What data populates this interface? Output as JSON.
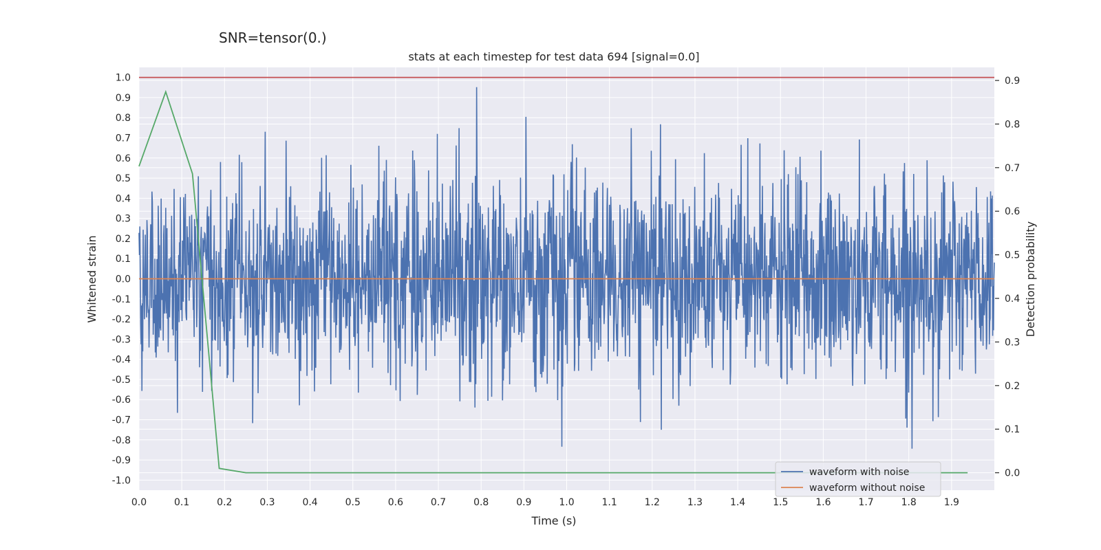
{
  "chart_data": {
    "type": "line",
    "suptitle": "SNR=tensor(0.)",
    "title": "stats at each timestep for test data 694 [signal=0.0]",
    "xlabel": "Time (s)",
    "ylabel": "Whitened strain",
    "y2label": "Detection probability",
    "xlim": [
      0.0,
      2.0
    ],
    "ylim": [
      -1.05,
      1.05
    ],
    "y2lim": [
      -0.04,
      0.93
    ],
    "xticks": [
      "0.0",
      "0.1",
      "0.2",
      "0.3",
      "0.4",
      "0.5",
      "0.6",
      "0.7",
      "0.8",
      "0.9",
      "1.0",
      "1.1",
      "1.2",
      "1.3",
      "1.4",
      "1.5",
      "1.6",
      "1.7",
      "1.8",
      "1.9"
    ],
    "yticks": [
      "1.0",
      "0.9",
      "0.8",
      "0.7",
      "0.6",
      "0.5",
      "0.4",
      "0.3",
      "0.2",
      "0.1",
      "0.0",
      "-0.1",
      "-0.2",
      "-0.3",
      "-0.4",
      "-0.5",
      "-0.6",
      "-0.7",
      "-0.8",
      "-0.9",
      "-1.0"
    ],
    "y2ticks": [
      "0.9",
      "0.8",
      "0.7",
      "0.6",
      "0.5",
      "0.4",
      "0.3",
      "0.2",
      "0.1",
      "0.0"
    ],
    "grid": true,
    "legend_position": "lower-right",
    "series": [
      {
        "name": "waveform with noise",
        "axis": "left",
        "color": "#4c72b0",
        "samples": 2048,
        "noise_std": 0.25,
        "peak_min": -0.92,
        "peak_max": 1.0
      },
      {
        "name": "waveform without noise",
        "axis": "left",
        "color": "#dd8452",
        "x": [
          0.0,
          2.0
        ],
        "y": [
          0.0,
          0.0
        ]
      },
      {
        "name": "detection probability",
        "axis": "right",
        "color": "#55a868",
        "x": [
          0.0,
          0.0625,
          0.125,
          0.1875,
          0.25,
          0.3125,
          0.375,
          0.5,
          0.75,
          1.0,
          1.25,
          1.5,
          1.75,
          1.9375
        ],
        "y": [
          0.703,
          0.874,
          0.686,
          0.01,
          0.0,
          0.0,
          0.0,
          0.0,
          0.0,
          0.0,
          0.0,
          0.0,
          0.0,
          0.0
        ]
      },
      {
        "name": "threshold",
        "axis": "left",
        "color": "#c44e52",
        "x": [
          0.0,
          2.0
        ],
        "y": [
          1.0,
          1.0
        ]
      }
    ],
    "legend": [
      "waveform with noise",
      "waveform without noise"
    ]
  }
}
